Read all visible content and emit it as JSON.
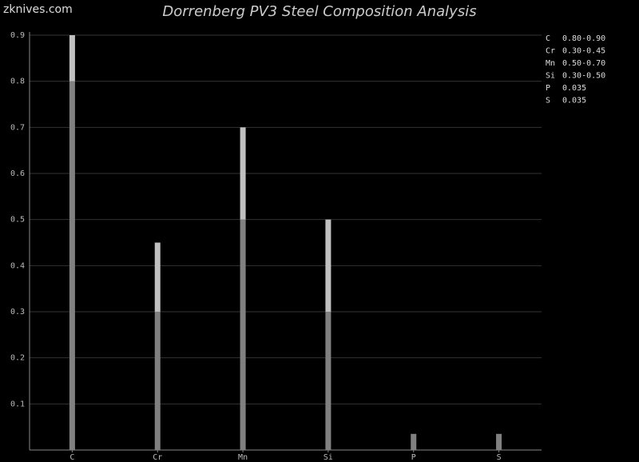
{
  "chart_data": {
    "type": "range-bar",
    "watermark": "zknives.com",
    "title": "Dorrenberg PV3 Steel Composition Analysis",
    "categories": [
      "C",
      "Cr",
      "Mn",
      "Si",
      "P",
      "S"
    ],
    "low": [
      0.8,
      0.3,
      0.5,
      0.3,
      0.035,
      0.035
    ],
    "high": [
      0.9,
      0.45,
      0.7,
      0.5,
      0.035,
      0.035
    ],
    "value_labels": [
      "0.80-0.90",
      "0.30-0.45",
      "0.50-0.70",
      "0.30-0.50",
      "0.035",
      "0.035"
    ],
    "low_color": "#808080",
    "high_color": "#c0c0c0",
    "ylim": [
      0,
      0.9
    ],
    "yticks": [
      0.1,
      0.2,
      0.3,
      0.4,
      0.5,
      0.6,
      0.7,
      0.8,
      0.9
    ],
    "grid": true,
    "legend": "top-right"
  }
}
